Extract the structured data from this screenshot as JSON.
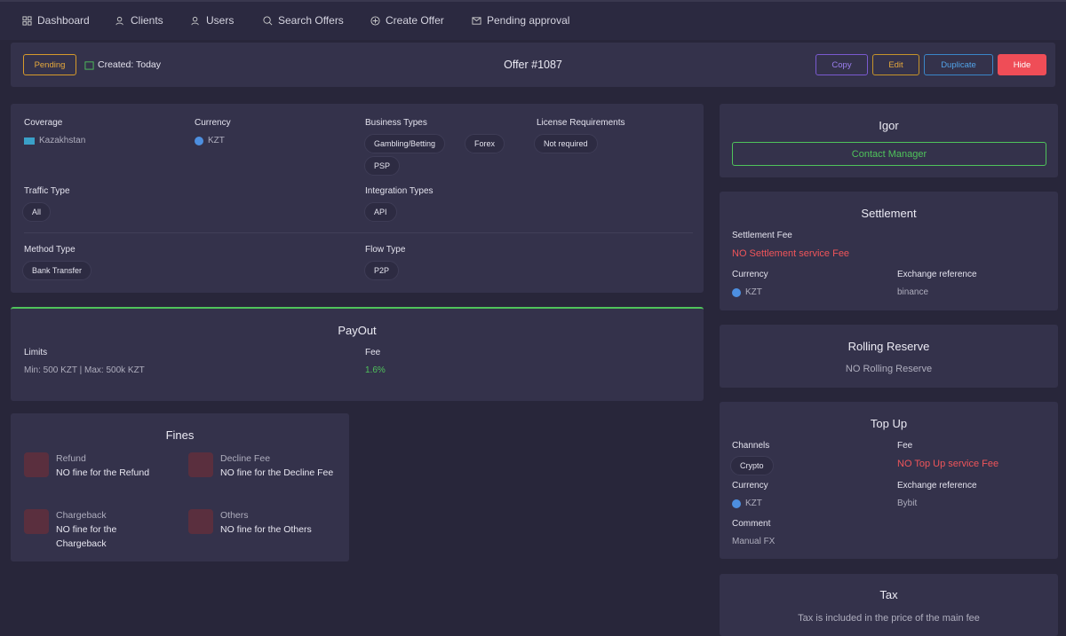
{
  "nav": {
    "items": [
      "Dashboard",
      "Clients",
      "Users",
      "Search Offers",
      "Create Offer",
      "Pending approval"
    ]
  },
  "header": {
    "status": "Pending",
    "created": "Created: Today",
    "title": "Offer #1087",
    "actions": [
      "Copy",
      "Edit",
      "Duplicate",
      "Hide"
    ]
  },
  "details": {
    "coverage": {
      "label": "Coverage",
      "value": "Kazakhstan"
    },
    "currency": {
      "label": "Currency",
      "value": "KZT"
    },
    "business_types": {
      "label": "Business Types",
      "values": [
        "Gambling/Betting",
        "Forex",
        "PSP"
      ]
    },
    "license": {
      "label": "License Requirements",
      "value": "Not required"
    },
    "traffic": {
      "label": "Traffic Type",
      "value": "All"
    },
    "integration": {
      "label": "Integration Types",
      "value": "API"
    },
    "method": {
      "label": "Method Type",
      "value": "Bank Transfer"
    },
    "flow": {
      "label": "Flow Type",
      "value": "P2P"
    }
  },
  "payout": {
    "title": "PayOut",
    "limits_label": "Limits",
    "limits": "Min: 500 KZT | Max: 500k KZT",
    "fee_label": "Fee",
    "fee": "1.6%"
  },
  "fines": {
    "title": "Fines",
    "items": [
      {
        "label": "Refund",
        "text": "NO fine for the Refund"
      },
      {
        "label": "Decline Fee",
        "text": "NO fine for the Decline Fee"
      },
      {
        "label": "Chargeback",
        "text": "NO fine for the Chargeback"
      },
      {
        "label": "Others",
        "text": "NO fine for the Others"
      }
    ]
  },
  "manager": {
    "name": "Igor",
    "button": "Contact Manager"
  },
  "settlement": {
    "title": "Settlement",
    "fee_label": "Settlement Fee",
    "fee": "NO Settlement service Fee",
    "currency_label": "Currency",
    "currency": "KZT",
    "exchange_label": "Exchange reference",
    "exchange": "binance"
  },
  "rolling": {
    "title": "Rolling Reserve",
    "text": "NO Rolling Reserve"
  },
  "topup": {
    "title": "Top Up",
    "channels_label": "Channels",
    "channels": "Crypto",
    "fee_label": "Fee",
    "fee": "NO Top Up service Fee",
    "currency_label": "Currency",
    "currency": "KZT",
    "exchange_label": "Exchange reference",
    "exchange": "Bybit",
    "comment_label": "Comment",
    "comment": "Manual FX"
  },
  "tax": {
    "title": "Tax",
    "text": "Tax is included in the price of the main fee"
  }
}
